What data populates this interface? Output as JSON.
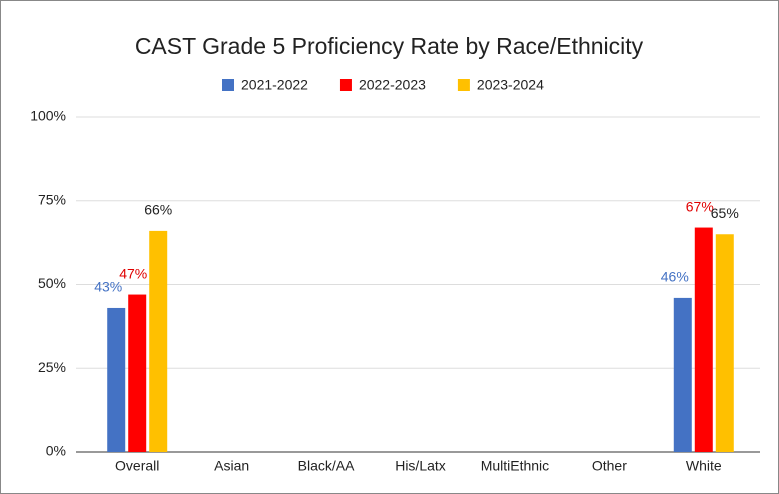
{
  "chart_data": {
    "type": "bar",
    "title": "CAST Grade 5 Proficiency Rate by Race/Ethnicity",
    "categories": [
      "Overall",
      "Asian",
      "Black/AA",
      "His/Latx",
      "MultiEthnic",
      "Other",
      "White"
    ],
    "series": [
      {
        "name": "2021-2022",
        "color": "#4472c4",
        "label_color": "#4472c4",
        "values": [
          43,
          null,
          null,
          null,
          null,
          null,
          46
        ],
        "value_labels": [
          "43%",
          null,
          null,
          null,
          null,
          null,
          "46%"
        ]
      },
      {
        "name": "2022-2023",
        "color": "#ff0000",
        "label_color": "#e00000",
        "values": [
          47,
          null,
          null,
          null,
          null,
          null,
          67
        ],
        "value_labels": [
          "47%",
          null,
          null,
          null,
          null,
          null,
          "67%"
        ]
      },
      {
        "name": "2023-2024",
        "color": "#ffc000",
        "label_color": "#222222",
        "values": [
          66,
          null,
          null,
          null,
          null,
          null,
          65
        ],
        "value_labels": [
          "66%",
          null,
          null,
          null,
          null,
          null,
          "65%"
        ]
      }
    ],
    "ylim": [
      0,
      100
    ],
    "yticks": [
      {
        "value": 0,
        "label": "0%"
      },
      {
        "value": 25,
        "label": "25%"
      },
      {
        "value": 50,
        "label": "50%"
      },
      {
        "value": 75,
        "label": "75%"
      },
      {
        "value": 100,
        "label": "100%"
      }
    ],
    "grid": true,
    "legend": "top"
  }
}
